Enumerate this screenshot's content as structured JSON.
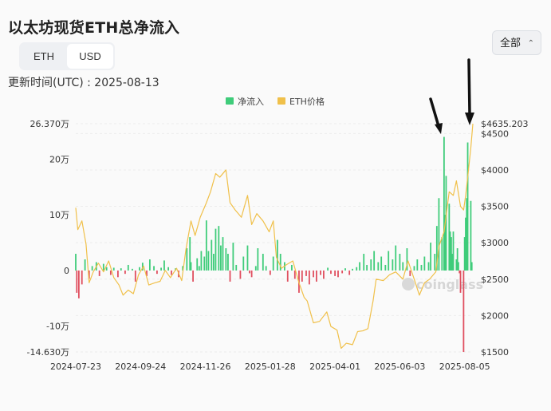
{
  "title": "以太坊现货ETH总净流入",
  "unit_toggle": {
    "options": [
      "ETH",
      "USD"
    ],
    "selected": "USD"
  },
  "updated_text": "更新时间(UTC) : 2025-08-13",
  "range_select": {
    "value": "全部",
    "icon": "chevron-updown-icon"
  },
  "watermark": "coinglass",
  "colors": {
    "inflow": "#3fcc7a",
    "outflow": "#e04f5f",
    "price": "#f0c04a"
  },
  "chart_data": {
    "type": "bar+line",
    "legend": [
      {
        "name": "净流入",
        "color": "#3fcc7a"
      },
      {
        "name": "ETH价格",
        "color": "#f0c04a"
      }
    ],
    "legend_position": "top-center",
    "x_tick_labels": [
      "2024-07-23",
      "2024-09-24",
      "2024-11-26",
      "2025-01-28",
      "2025-04-01",
      "2025-06-03",
      "2025-08-05"
    ],
    "x_range": [
      "2024-07-23",
      "2025-08-13"
    ],
    "left_axis": {
      "ticks": [
        {
          "value": 263700,
          "label": "26.370万"
        },
        {
          "value": 200000,
          "label": "20万"
        },
        {
          "value": 100000,
          "label": "10万"
        },
        {
          "value": 0,
          "label": "0"
        },
        {
          "value": -100000,
          "label": "-10万"
        },
        {
          "value": -146300,
          "label": "-14.630万"
        }
      ],
      "range": [
        -146300,
        263700
      ]
    },
    "right_axis": {
      "ticks": [
        {
          "value": 4635.203,
          "label": "$4635.203"
        },
        {
          "value": 4500,
          "label": "$4500"
        },
        {
          "value": 4000,
          "label": "$4000"
        },
        {
          "value": 3500,
          "label": "$3500"
        },
        {
          "value": 3000,
          "label": "$3000"
        },
        {
          "value": 2500,
          "label": "$2500"
        },
        {
          "value": 2000,
          "label": "$2000"
        },
        {
          "value": 1500,
          "label": "$1500"
        }
      ],
      "range": [
        1500,
        4635.203
      ]
    },
    "grid": "horizontal",
    "annotations": [
      "arrow pointing at 2025-07 inflow peak",
      "arrow pointing at 2025-08 price peak"
    ],
    "series": [
      {
        "name": "净流入",
        "kind": "bar",
        "unit": "ETH",
        "points": [
          [
            "2024-07-23",
            30000
          ],
          [
            "2024-07-24",
            -40000
          ],
          [
            "2024-07-26",
            -50000
          ],
          [
            "2024-07-29",
            -25000
          ],
          [
            "2024-08-01",
            20000
          ],
          [
            "2024-08-05",
            -15000
          ],
          [
            "2024-08-08",
            8000
          ],
          [
            "2024-08-12",
            15000
          ],
          [
            "2024-08-15",
            -10000
          ],
          [
            "2024-08-19",
            12000
          ],
          [
            "2024-08-22",
            6000
          ],
          [
            "2024-08-26",
            -8000
          ],
          [
            "2024-08-29",
            5000
          ],
          [
            "2024-09-02",
            -12000
          ],
          [
            "2024-09-05",
            4000
          ],
          [
            "2024-09-09",
            -6000
          ],
          [
            "2024-09-12",
            10000
          ],
          [
            "2024-09-16",
            3000
          ],
          [
            "2024-09-19",
            -20000
          ],
          [
            "2024-09-23",
            6000
          ],
          [
            "2024-09-26",
            14000
          ],
          [
            "2024-09-30",
            -10000
          ],
          [
            "2024-10-03",
            20000
          ],
          [
            "2024-10-07",
            8000
          ],
          [
            "2024-10-10",
            -6000
          ],
          [
            "2024-10-14",
            5000
          ],
          [
            "2024-10-17",
            18000
          ],
          [
            "2024-10-21",
            6000
          ],
          [
            "2024-10-24",
            -8000
          ],
          [
            "2024-10-28",
            4000
          ],
          [
            "2024-10-31",
            -12000
          ],
          [
            "2024-11-04",
            8000
          ],
          [
            "2024-11-08",
            40000
          ],
          [
            "2024-11-11",
            60000
          ],
          [
            "2024-11-12",
            15000
          ],
          [
            "2024-11-14",
            -20000
          ],
          [
            "2024-11-18",
            22000
          ],
          [
            "2024-11-20",
            8000
          ],
          [
            "2024-11-22",
            35000
          ],
          [
            "2024-11-25",
            25000
          ],
          [
            "2024-11-27",
            90000
          ],
          [
            "2024-11-29",
            35000
          ],
          [
            "2024-12-02",
            55000
          ],
          [
            "2024-12-04",
            30000
          ],
          [
            "2024-12-06",
            75000
          ],
          [
            "2024-12-09",
            80000
          ],
          [
            "2024-12-11",
            45000
          ],
          [
            "2024-12-13",
            60000
          ],
          [
            "2024-12-16",
            40000
          ],
          [
            "2024-12-18",
            30000
          ],
          [
            "2024-12-20",
            -20000
          ],
          [
            "2024-12-23",
            50000
          ],
          [
            "2024-12-26",
            10000
          ],
          [
            "2024-12-30",
            -15000
          ],
          [
            "2025-01-02",
            25000
          ],
          [
            "2025-01-06",
            45000
          ],
          [
            "2025-01-08",
            -5000
          ],
          [
            "2025-01-10",
            -12000
          ],
          [
            "2025-01-14",
            8000
          ],
          [
            "2025-01-16",
            40000
          ],
          [
            "2025-01-21",
            30000
          ],
          [
            "2025-01-24",
            8000
          ],
          [
            "2025-01-28",
            -8000
          ],
          [
            "2025-01-31",
            25000
          ],
          [
            "2025-02-04",
            55000
          ],
          [
            "2025-02-07",
            30000
          ],
          [
            "2025-02-11",
            15000
          ],
          [
            "2025-02-14",
            -20000
          ],
          [
            "2025-02-18",
            10000
          ],
          [
            "2025-02-21",
            -15000
          ],
          [
            "2025-02-25",
            -40000
          ],
          [
            "2025-02-28",
            -20000
          ],
          [
            "2025-03-04",
            -10000
          ],
          [
            "2025-03-07",
            -25000
          ],
          [
            "2025-03-11",
            -12000
          ],
          [
            "2025-03-14",
            -20000
          ],
          [
            "2025-03-18",
            -8000
          ],
          [
            "2025-03-21",
            -15000
          ],
          [
            "2025-03-25",
            5000
          ],
          [
            "2025-03-28",
            -6000
          ],
          [
            "2025-04-01",
            -10000
          ],
          [
            "2025-04-04",
            -12000
          ],
          [
            "2025-04-08",
            -5000
          ],
          [
            "2025-04-11",
            4000
          ],
          [
            "2025-04-15",
            -8000
          ],
          [
            "2025-04-18",
            3000
          ],
          [
            "2025-04-22",
            6000
          ],
          [
            "2025-04-25",
            15000
          ],
          [
            "2025-04-29",
            30000
          ],
          [
            "2025-05-02",
            10000
          ],
          [
            "2025-05-06",
            20000
          ],
          [
            "2025-05-09",
            35000
          ],
          [
            "2025-05-13",
            15000
          ],
          [
            "2025-05-16",
            25000
          ],
          [
            "2025-05-20",
            10000
          ],
          [
            "2025-05-23",
            35000
          ],
          [
            "2025-05-27",
            20000
          ],
          [
            "2025-05-30",
            45000
          ],
          [
            "2025-06-03",
            30000
          ],
          [
            "2025-06-06",
            15000
          ],
          [
            "2025-06-10",
            40000
          ],
          [
            "2025-06-13",
            -10000
          ],
          [
            "2025-06-17",
            8000
          ],
          [
            "2025-06-20",
            20000
          ],
          [
            "2025-06-24",
            10000
          ],
          [
            "2025-06-27",
            25000
          ],
          [
            "2025-07-01",
            15000
          ],
          [
            "2025-07-03",
            50000
          ],
          [
            "2025-07-07",
            30000
          ],
          [
            "2025-07-09",
            80000
          ],
          [
            "2025-07-11",
            130000
          ],
          [
            "2025-07-14",
            60000
          ],
          [
            "2025-07-16",
            240000
          ],
          [
            "2025-07-17",
            100000
          ],
          [
            "2025-07-18",
            170000
          ],
          [
            "2025-07-21",
            120000
          ],
          [
            "2025-07-22",
            70000
          ],
          [
            "2025-07-23",
            60000
          ],
          [
            "2025-07-24",
            30000
          ],
          [
            "2025-07-25",
            70000
          ],
          [
            "2025-07-28",
            20000
          ],
          [
            "2025-07-29",
            40000
          ],
          [
            "2025-07-30",
            15000
          ],
          [
            "2025-07-31",
            -5000
          ],
          [
            "2025-08-01",
            -40000
          ],
          [
            "2025-08-04",
            -146300
          ],
          [
            "2025-08-05",
            60000
          ],
          [
            "2025-08-06",
            95000
          ],
          [
            "2025-08-07",
            130000
          ],
          [
            "2025-08-08",
            230000
          ],
          [
            "2025-08-11",
            125000
          ],
          [
            "2025-08-12",
            15000
          ]
        ]
      },
      {
        "name": "ETH价格",
        "kind": "line",
        "unit": "USD",
        "points": [
          [
            "2024-07-23",
            3480
          ],
          [
            "2024-07-25",
            3180
          ],
          [
            "2024-07-29",
            3300
          ],
          [
            "2024-08-02",
            2980
          ],
          [
            "2024-08-05",
            2450
          ],
          [
            "2024-08-09",
            2600
          ],
          [
            "2024-08-14",
            2720
          ],
          [
            "2024-08-19",
            2600
          ],
          [
            "2024-08-24",
            2750
          ],
          [
            "2024-08-29",
            2520
          ],
          [
            "2024-09-03",
            2420
          ],
          [
            "2024-09-07",
            2280
          ],
          [
            "2024-09-12",
            2350
          ],
          [
            "2024-09-17",
            2300
          ],
          [
            "2024-09-22",
            2560
          ],
          [
            "2024-09-27",
            2680
          ],
          [
            "2024-10-02",
            2420
          ],
          [
            "2024-10-08",
            2450
          ],
          [
            "2024-10-13",
            2470
          ],
          [
            "2024-10-18",
            2620
          ],
          [
            "2024-10-23",
            2520
          ],
          [
            "2024-10-29",
            2650
          ],
          [
            "2024-11-03",
            2480
          ],
          [
            "2024-11-07",
            2900
          ],
          [
            "2024-11-12",
            3300
          ],
          [
            "2024-11-16",
            3100
          ],
          [
            "2024-11-21",
            3350
          ],
          [
            "2024-11-27",
            3550
          ],
          [
            "2024-12-01",
            3700
          ],
          [
            "2024-12-06",
            3950
          ],
          [
            "2024-12-10",
            3900
          ],
          [
            "2024-12-16",
            4000
          ],
          [
            "2024-12-20",
            3550
          ],
          [
            "2024-12-25",
            3450
          ],
          [
            "2024-12-31",
            3350
          ],
          [
            "2025-01-06",
            3650
          ],
          [
            "2025-01-10",
            3250
          ],
          [
            "2025-01-15",
            3400
          ],
          [
            "2025-01-21",
            3300
          ],
          [
            "2025-01-27",
            3150
          ],
          [
            "2025-01-31",
            3300
          ],
          [
            "2025-02-03",
            2800
          ],
          [
            "2025-02-08",
            2650
          ],
          [
            "2025-02-13",
            2700
          ],
          [
            "2025-02-19",
            2750
          ],
          [
            "2025-02-25",
            2450
          ],
          [
            "2025-03-02",
            2250
          ],
          [
            "2025-03-05",
            2200
          ],
          [
            "2025-03-11",
            1900
          ],
          [
            "2025-03-17",
            1920
          ],
          [
            "2025-03-24",
            2050
          ],
          [
            "2025-03-28",
            1850
          ],
          [
            "2025-04-03",
            1800
          ],
          [
            "2025-04-07",
            1550
          ],
          [
            "2025-04-12",
            1620
          ],
          [
            "2025-04-18",
            1600
          ],
          [
            "2025-04-23",
            1780
          ],
          [
            "2025-04-28",
            1790
          ],
          [
            "2025-05-03",
            1820
          ],
          [
            "2025-05-08",
            2200
          ],
          [
            "2025-05-11",
            2500
          ],
          [
            "2025-05-18",
            2480
          ],
          [
            "2025-05-24",
            2560
          ],
          [
            "2025-05-30",
            2600
          ],
          [
            "2025-06-06",
            2500
          ],
          [
            "2025-06-11",
            2750
          ],
          [
            "2025-06-17",
            2500
          ],
          [
            "2025-06-22",
            2280
          ],
          [
            "2025-06-27",
            2450
          ],
          [
            "2025-07-02",
            2500
          ],
          [
            "2025-07-08",
            2600
          ],
          [
            "2025-07-11",
            2950
          ],
          [
            "2025-07-16",
            3150
          ],
          [
            "2025-07-21",
            3700
          ],
          [
            "2025-07-25",
            3650
          ],
          [
            "2025-07-28",
            3850
          ],
          [
            "2025-08-01",
            3500
          ],
          [
            "2025-08-04",
            3450
          ],
          [
            "2025-08-06",
            3650
          ],
          [
            "2025-08-08",
            3900
          ],
          [
            "2025-08-11",
            4300
          ],
          [
            "2025-08-13",
            4635.203
          ]
        ]
      }
    ]
  }
}
